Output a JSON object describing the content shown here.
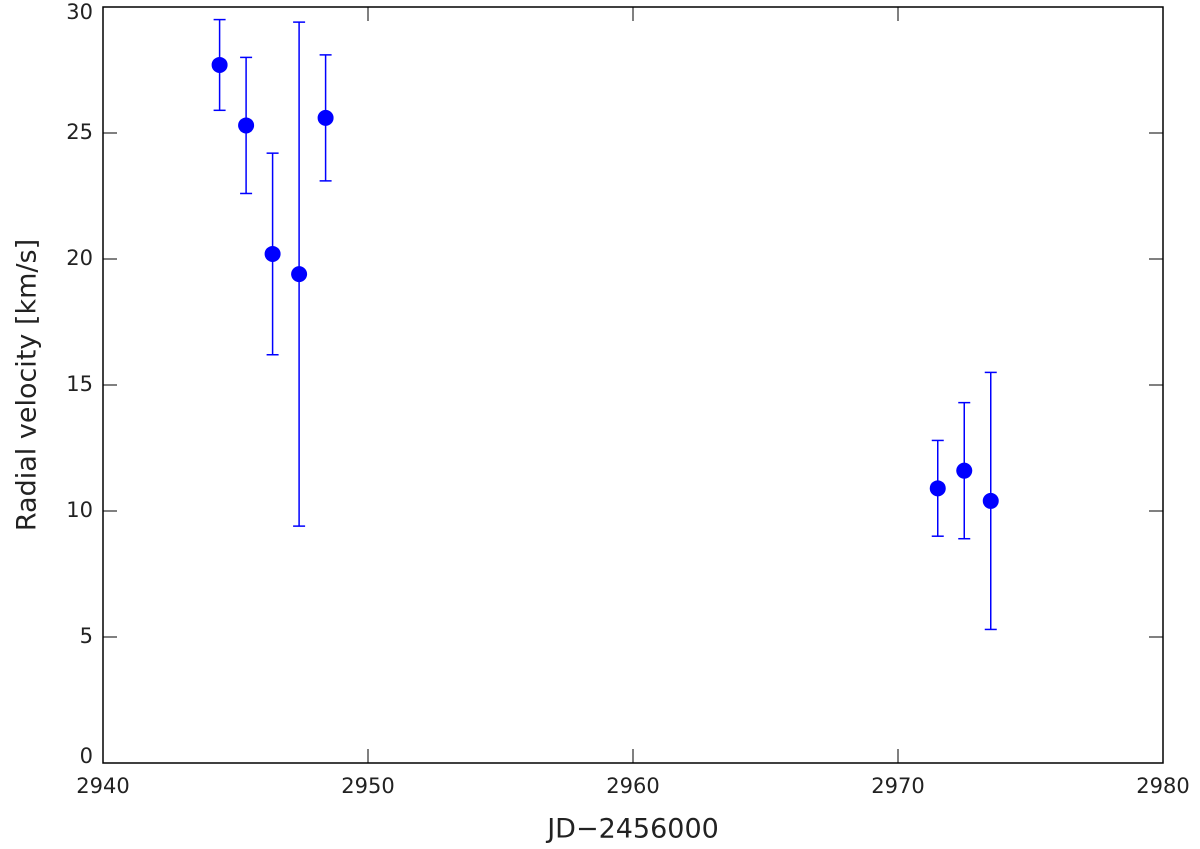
{
  "chart_data": {
    "type": "scatter",
    "x_label": "JD−2456000",
    "y_label": "Radial velocity [km/s]",
    "series": [
      {
        "color": "#0000ff",
        "x": [
          2944.4,
          2945.4,
          2946.4,
          2947.4,
          2948.4,
          2971.5,
          2972.5,
          2973.5
        ],
        "values": [
          27.7,
          25.3,
          20.2,
          19.4,
          25.6,
          10.9,
          11.6,
          10.4
        ],
        "errors": [
          1.8,
          2.7,
          4.0,
          10.0,
          2.5,
          1.9,
          2.7,
          5.1
        ]
      }
    ],
    "xlim": [
      2940,
      2980
    ],
    "xticks": [
      2940,
      2950,
      2960,
      2970,
      2980
    ],
    "ylim": [
      0,
      30
    ],
    "yticks": [
      0,
      5,
      10,
      15,
      20,
      25,
      30
    ],
    "grid": false
  }
}
